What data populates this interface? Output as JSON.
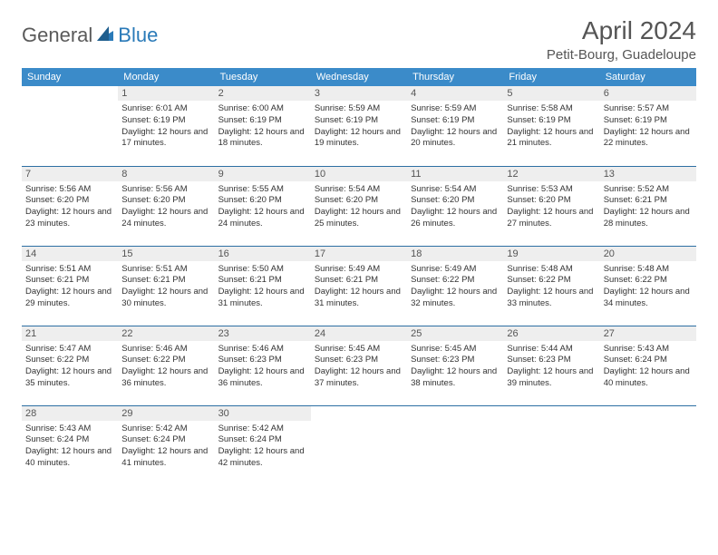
{
  "logo": {
    "part1": "General",
    "part2": "Blue"
  },
  "title": "April 2024",
  "location": "Petit-Bourg, Guadeloupe",
  "weekdays": [
    "Sunday",
    "Monday",
    "Tuesday",
    "Wednesday",
    "Thursday",
    "Friday",
    "Saturday"
  ],
  "colors": {
    "header_bg": "#3b8bc9",
    "header_text": "#ffffff",
    "daynum_bg": "#eeeeee",
    "border": "#2d6fa3",
    "logo_blue": "#2a7ab8",
    "logo_dark": "#5a5a5a"
  },
  "grid": [
    [
      {
        "n": "",
        "sr": "",
        "ss": "",
        "dl": ""
      },
      {
        "n": "1",
        "sr": "Sunrise: 6:01 AM",
        "ss": "Sunset: 6:19 PM",
        "dl": "Daylight: 12 hours and 17 minutes."
      },
      {
        "n": "2",
        "sr": "Sunrise: 6:00 AM",
        "ss": "Sunset: 6:19 PM",
        "dl": "Daylight: 12 hours and 18 minutes."
      },
      {
        "n": "3",
        "sr": "Sunrise: 5:59 AM",
        "ss": "Sunset: 6:19 PM",
        "dl": "Daylight: 12 hours and 19 minutes."
      },
      {
        "n": "4",
        "sr": "Sunrise: 5:59 AM",
        "ss": "Sunset: 6:19 PM",
        "dl": "Daylight: 12 hours and 20 minutes."
      },
      {
        "n": "5",
        "sr": "Sunrise: 5:58 AM",
        "ss": "Sunset: 6:19 PM",
        "dl": "Daylight: 12 hours and 21 minutes."
      },
      {
        "n": "6",
        "sr": "Sunrise: 5:57 AM",
        "ss": "Sunset: 6:19 PM",
        "dl": "Daylight: 12 hours and 22 minutes."
      }
    ],
    [
      {
        "n": "7",
        "sr": "Sunrise: 5:56 AM",
        "ss": "Sunset: 6:20 PM",
        "dl": "Daylight: 12 hours and 23 minutes."
      },
      {
        "n": "8",
        "sr": "Sunrise: 5:56 AM",
        "ss": "Sunset: 6:20 PM",
        "dl": "Daylight: 12 hours and 24 minutes."
      },
      {
        "n": "9",
        "sr": "Sunrise: 5:55 AM",
        "ss": "Sunset: 6:20 PM",
        "dl": "Daylight: 12 hours and 24 minutes."
      },
      {
        "n": "10",
        "sr": "Sunrise: 5:54 AM",
        "ss": "Sunset: 6:20 PM",
        "dl": "Daylight: 12 hours and 25 minutes."
      },
      {
        "n": "11",
        "sr": "Sunrise: 5:54 AM",
        "ss": "Sunset: 6:20 PM",
        "dl": "Daylight: 12 hours and 26 minutes."
      },
      {
        "n": "12",
        "sr": "Sunrise: 5:53 AM",
        "ss": "Sunset: 6:20 PM",
        "dl": "Daylight: 12 hours and 27 minutes."
      },
      {
        "n": "13",
        "sr": "Sunrise: 5:52 AM",
        "ss": "Sunset: 6:21 PM",
        "dl": "Daylight: 12 hours and 28 minutes."
      }
    ],
    [
      {
        "n": "14",
        "sr": "Sunrise: 5:51 AM",
        "ss": "Sunset: 6:21 PM",
        "dl": "Daylight: 12 hours and 29 minutes."
      },
      {
        "n": "15",
        "sr": "Sunrise: 5:51 AM",
        "ss": "Sunset: 6:21 PM",
        "dl": "Daylight: 12 hours and 30 minutes."
      },
      {
        "n": "16",
        "sr": "Sunrise: 5:50 AM",
        "ss": "Sunset: 6:21 PM",
        "dl": "Daylight: 12 hours and 31 minutes."
      },
      {
        "n": "17",
        "sr": "Sunrise: 5:49 AM",
        "ss": "Sunset: 6:21 PM",
        "dl": "Daylight: 12 hours and 31 minutes."
      },
      {
        "n": "18",
        "sr": "Sunrise: 5:49 AM",
        "ss": "Sunset: 6:22 PM",
        "dl": "Daylight: 12 hours and 32 minutes."
      },
      {
        "n": "19",
        "sr": "Sunrise: 5:48 AM",
        "ss": "Sunset: 6:22 PM",
        "dl": "Daylight: 12 hours and 33 minutes."
      },
      {
        "n": "20",
        "sr": "Sunrise: 5:48 AM",
        "ss": "Sunset: 6:22 PM",
        "dl": "Daylight: 12 hours and 34 minutes."
      }
    ],
    [
      {
        "n": "21",
        "sr": "Sunrise: 5:47 AM",
        "ss": "Sunset: 6:22 PM",
        "dl": "Daylight: 12 hours and 35 minutes."
      },
      {
        "n": "22",
        "sr": "Sunrise: 5:46 AM",
        "ss": "Sunset: 6:22 PM",
        "dl": "Daylight: 12 hours and 36 minutes."
      },
      {
        "n": "23",
        "sr": "Sunrise: 5:46 AM",
        "ss": "Sunset: 6:23 PM",
        "dl": "Daylight: 12 hours and 36 minutes."
      },
      {
        "n": "24",
        "sr": "Sunrise: 5:45 AM",
        "ss": "Sunset: 6:23 PM",
        "dl": "Daylight: 12 hours and 37 minutes."
      },
      {
        "n": "25",
        "sr": "Sunrise: 5:45 AM",
        "ss": "Sunset: 6:23 PM",
        "dl": "Daylight: 12 hours and 38 minutes."
      },
      {
        "n": "26",
        "sr": "Sunrise: 5:44 AM",
        "ss": "Sunset: 6:23 PM",
        "dl": "Daylight: 12 hours and 39 minutes."
      },
      {
        "n": "27",
        "sr": "Sunrise: 5:43 AM",
        "ss": "Sunset: 6:24 PM",
        "dl": "Daylight: 12 hours and 40 minutes."
      }
    ],
    [
      {
        "n": "28",
        "sr": "Sunrise: 5:43 AM",
        "ss": "Sunset: 6:24 PM",
        "dl": "Daylight: 12 hours and 40 minutes."
      },
      {
        "n": "29",
        "sr": "Sunrise: 5:42 AM",
        "ss": "Sunset: 6:24 PM",
        "dl": "Daylight: 12 hours and 41 minutes."
      },
      {
        "n": "30",
        "sr": "Sunrise: 5:42 AM",
        "ss": "Sunset: 6:24 PM",
        "dl": "Daylight: 12 hours and 42 minutes."
      },
      {
        "n": "",
        "sr": "",
        "ss": "",
        "dl": ""
      },
      {
        "n": "",
        "sr": "",
        "ss": "",
        "dl": ""
      },
      {
        "n": "",
        "sr": "",
        "ss": "",
        "dl": ""
      },
      {
        "n": "",
        "sr": "",
        "ss": "",
        "dl": ""
      }
    ]
  ]
}
